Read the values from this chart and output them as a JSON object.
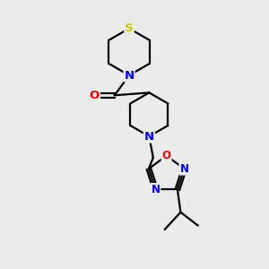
{
  "bg_color": "#ebebeb",
  "atom_colors": {
    "C": "#000000",
    "N": "#0000ff",
    "O": "#ff0000",
    "S": "#cccc00"
  },
  "bond_color": "#000000",
  "bond_width": 1.6,
  "font_size_atom": 8.5,
  "figure_size": [
    3.0,
    3.0
  ],
  "dpi": 100
}
